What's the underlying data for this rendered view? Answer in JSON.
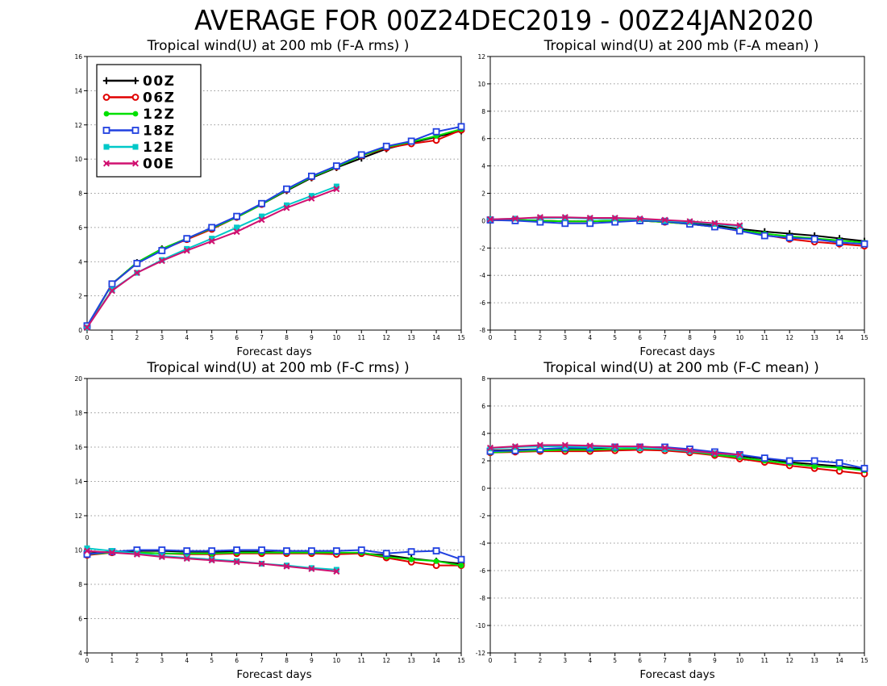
{
  "title": "AVERAGE FOR 00Z24DEC2019 - 00Z24JAN2020",
  "series_styles": [
    {
      "name": "00Z",
      "color": "#000000",
      "marker": "plus"
    },
    {
      "name": "06Z",
      "color": "#e00000",
      "marker": "circle"
    },
    {
      "name": "12Z",
      "color": "#00e000",
      "marker": "dot"
    },
    {
      "name": "18Z",
      "color": "#2040e0",
      "marker": "square"
    },
    {
      "name": "12E",
      "color": "#00c8c8",
      "marker": "filled-square"
    },
    {
      "name": "00E",
      "color": "#d01070",
      "marker": "x"
    }
  ],
  "chart_data": [
    {
      "type": "line",
      "title": "Tropical wind(U) at 200 mb (F-A rms) )",
      "xlabel": "Forecast days",
      "ylabel": "",
      "xlim": [
        0,
        15
      ],
      "ylim": [
        0,
        16
      ],
      "yticks": [
        0,
        2,
        4,
        6,
        8,
        10,
        12,
        14,
        16
      ],
      "xticks": [
        0,
        1,
        2,
        3,
        4,
        5,
        6,
        7,
        8,
        9,
        10,
        11,
        12,
        13,
        14,
        15
      ],
      "grid": "horizontal dotted",
      "legend": "top-left",
      "series": [
        {
          "name": "00Z",
          "x": [
            0,
            1,
            2,
            3,
            4,
            5,
            6,
            7,
            8,
            9,
            10,
            11,
            12,
            13,
            14,
            15
          ],
          "values": [
            0.2,
            2.7,
            3.95,
            4.75,
            5.35,
            5.95,
            6.6,
            7.35,
            8.15,
            8.9,
            9.5,
            10.05,
            10.6,
            10.95,
            11.3,
            11.65
          ]
        },
        {
          "name": "06Z",
          "x": [
            0,
            1,
            2,
            3,
            4,
            5,
            6,
            7,
            8,
            9,
            10,
            11,
            12,
            13,
            14,
            15
          ],
          "values": [
            0.2,
            2.7,
            3.9,
            4.7,
            5.3,
            5.9,
            6.6,
            7.35,
            8.2,
            8.95,
            9.55,
            10.2,
            10.65,
            10.9,
            11.1,
            11.7
          ]
        },
        {
          "name": "12Z",
          "x": [
            0,
            1,
            2,
            3,
            4,
            5,
            6,
            7,
            8,
            9,
            10,
            11,
            12,
            13,
            14,
            15
          ],
          "values": [
            0.2,
            2.7,
            3.95,
            4.75,
            5.35,
            5.95,
            6.6,
            7.35,
            8.2,
            8.95,
            9.55,
            10.2,
            10.7,
            11.0,
            11.35,
            11.75
          ]
        },
        {
          "name": "18Z",
          "x": [
            0,
            1,
            2,
            3,
            4,
            5,
            6,
            7,
            8,
            9,
            10,
            11,
            12,
            13,
            14,
            15
          ],
          "values": [
            0.25,
            2.7,
            3.9,
            4.65,
            5.35,
            6.0,
            6.65,
            7.4,
            8.25,
            9.0,
            9.6,
            10.25,
            10.75,
            11.05,
            11.6,
            11.9
          ]
        },
        {
          "name": "12E",
          "x": [
            0,
            1,
            2,
            3,
            4,
            5,
            6,
            7,
            8,
            9,
            10
          ],
          "values": [
            0.15,
            2.35,
            3.35,
            4.1,
            4.75,
            5.35,
            6.0,
            6.65,
            7.3,
            7.85,
            8.4
          ]
        },
        {
          "name": "00E",
          "x": [
            0,
            1,
            2,
            3,
            4,
            5,
            6,
            7,
            8,
            9,
            10
          ],
          "values": [
            0.15,
            2.3,
            3.35,
            4.05,
            4.65,
            5.2,
            5.75,
            6.45,
            7.15,
            7.7,
            8.25
          ]
        }
      ]
    },
    {
      "type": "line",
      "title": "Tropical wind(U) at 200 mb (F-A mean) )",
      "xlabel": "Forecast days",
      "ylabel": "",
      "xlim": [
        0,
        15
      ],
      "ylim": [
        -8,
        12
      ],
      "yticks": [
        -8,
        -6,
        -4,
        -2,
        0,
        2,
        4,
        6,
        8,
        10,
        12
      ],
      "xticks": [
        0,
        1,
        2,
        3,
        4,
        5,
        6,
        7,
        8,
        9,
        10,
        11,
        12,
        13,
        14,
        15
      ],
      "grid": "horizontal dotted",
      "series": [
        {
          "name": "00Z",
          "x": [
            0,
            1,
            2,
            3,
            4,
            5,
            6,
            7,
            8,
            9,
            10,
            11,
            12,
            13,
            14,
            15
          ],
          "values": [
            0.05,
            0.05,
            0.0,
            -0.05,
            -0.05,
            0.0,
            0.0,
            -0.1,
            -0.2,
            -0.35,
            -0.6,
            -0.8,
            -0.95,
            -1.1,
            -1.3,
            -1.5
          ]
        },
        {
          "name": "06Z",
          "x": [
            0,
            1,
            2,
            3,
            4,
            5,
            6,
            7,
            8,
            9,
            10,
            11,
            12,
            13,
            14,
            15
          ],
          "values": [
            0.05,
            0.05,
            0.0,
            -0.05,
            -0.05,
            0.0,
            0.0,
            -0.1,
            -0.25,
            -0.45,
            -0.75,
            -1.05,
            -1.35,
            -1.55,
            -1.7,
            -1.85
          ]
        },
        {
          "name": "12Z",
          "x": [
            0,
            1,
            2,
            3,
            4,
            5,
            6,
            7,
            8,
            9,
            10,
            11,
            12,
            13,
            14,
            15
          ],
          "values": [
            0.05,
            0.05,
            0.0,
            -0.05,
            -0.05,
            0.0,
            0.0,
            -0.1,
            -0.25,
            -0.45,
            -0.7,
            -0.95,
            -1.15,
            -1.3,
            -1.45,
            -1.6
          ]
        },
        {
          "name": "18Z",
          "x": [
            0,
            1,
            2,
            3,
            4,
            5,
            6,
            7,
            8,
            9,
            10,
            11,
            12,
            13,
            14,
            15
          ],
          "values": [
            0.05,
            0.0,
            -0.1,
            -0.2,
            -0.2,
            -0.1,
            0.0,
            -0.05,
            -0.25,
            -0.45,
            -0.75,
            -1.1,
            -1.25,
            -1.35,
            -1.6,
            -1.7
          ]
        },
        {
          "name": "12E",
          "x": [
            0,
            1,
            2,
            3,
            4,
            5,
            6,
            7,
            8,
            9,
            10
          ],
          "values": [
            0.1,
            0.15,
            0.2,
            0.2,
            0.15,
            0.15,
            0.1,
            0.0,
            -0.1,
            -0.25,
            -0.4
          ]
        },
        {
          "name": "00E",
          "x": [
            0,
            1,
            2,
            3,
            4,
            5,
            6,
            7,
            8,
            9,
            10
          ],
          "values": [
            0.1,
            0.15,
            0.25,
            0.25,
            0.2,
            0.2,
            0.15,
            0.05,
            -0.05,
            -0.2,
            -0.35
          ]
        }
      ]
    },
    {
      "type": "line",
      "title": "Tropical wind(U) at 200 mb (F-C rms) )",
      "xlabel": "Forecast days",
      "ylabel": "",
      "xlim": [
        0,
        15
      ],
      "ylim": [
        4,
        20
      ],
      "yticks": [
        4,
        6,
        8,
        10,
        12,
        14,
        16,
        18,
        20
      ],
      "xticks": [
        0,
        1,
        2,
        3,
        4,
        5,
        6,
        7,
        8,
        9,
        10,
        11,
        12,
        13,
        14,
        15
      ],
      "grid": "horizontal dotted",
      "series": [
        {
          "name": "00Z",
          "x": [
            0,
            1,
            2,
            3,
            4,
            5,
            6,
            7,
            8,
            9,
            10,
            11,
            12,
            13,
            14,
            15
          ],
          "values": [
            9.8,
            9.9,
            9.95,
            9.95,
            9.9,
            9.9,
            9.9,
            9.9,
            9.85,
            9.85,
            9.85,
            9.8,
            9.7,
            9.5,
            9.35,
            9.2
          ]
        },
        {
          "name": "06Z",
          "x": [
            0,
            1,
            2,
            3,
            4,
            5,
            6,
            7,
            8,
            9,
            10,
            11,
            12,
            13,
            14,
            15
          ],
          "values": [
            9.7,
            9.85,
            9.85,
            9.8,
            9.75,
            9.75,
            9.8,
            9.8,
            9.8,
            9.8,
            9.75,
            9.8,
            9.55,
            9.3,
            9.1,
            9.1
          ]
        },
        {
          "name": "12Z",
          "x": [
            0,
            1,
            2,
            3,
            4,
            5,
            6,
            7,
            8,
            9,
            10,
            11,
            12,
            13,
            14,
            15
          ],
          "values": [
            9.75,
            9.85,
            9.85,
            9.8,
            9.8,
            9.8,
            9.85,
            9.85,
            9.85,
            9.85,
            9.85,
            9.85,
            9.6,
            9.45,
            9.35,
            9.1
          ]
        },
        {
          "name": "18Z",
          "x": [
            0,
            1,
            2,
            3,
            4,
            5,
            6,
            7,
            8,
            9,
            10,
            11,
            12,
            13,
            14,
            15
          ],
          "values": [
            9.75,
            9.9,
            10.0,
            10.0,
            9.95,
            9.95,
            10.0,
            10.0,
            9.95,
            9.95,
            9.95,
            10.0,
            9.8,
            9.9,
            9.95,
            9.45
          ]
        },
        {
          "name": "12E",
          "x": [
            0,
            1,
            2,
            3,
            4,
            5,
            6,
            7,
            8,
            9,
            10
          ],
          "values": [
            10.1,
            9.95,
            9.8,
            9.65,
            9.55,
            9.45,
            9.35,
            9.2,
            9.1,
            8.95,
            8.85
          ]
        },
        {
          "name": "00E",
          "x": [
            0,
            1,
            2,
            3,
            4,
            5,
            6,
            7,
            8,
            9,
            10
          ],
          "values": [
            9.95,
            9.85,
            9.75,
            9.6,
            9.5,
            9.4,
            9.3,
            9.2,
            9.05,
            8.9,
            8.75
          ]
        }
      ]
    },
    {
      "type": "line",
      "title": "Tropical wind(U) at 200 mb (F-C mean) )",
      "xlabel": "Forecast days",
      "ylabel": "",
      "xlim": [
        0,
        15
      ],
      "ylim": [
        -12,
        8
      ],
      "yticks": [
        -12,
        -10,
        -8,
        -6,
        -4,
        -2,
        0,
        2,
        4,
        6,
        8
      ],
      "xticks": [
        0,
        1,
        2,
        3,
        4,
        5,
        6,
        7,
        8,
        9,
        10,
        11,
        12,
        13,
        14,
        15
      ],
      "grid": "horizontal dotted",
      "series": [
        {
          "name": "00Z",
          "x": [
            0,
            1,
            2,
            3,
            4,
            5,
            6,
            7,
            8,
            9,
            10,
            11,
            12,
            13,
            14,
            15
          ],
          "values": [
            2.75,
            2.8,
            2.85,
            2.85,
            2.85,
            2.85,
            2.85,
            2.8,
            2.7,
            2.55,
            2.35,
            2.15,
            1.9,
            1.75,
            1.6,
            1.4
          ]
        },
        {
          "name": "06Z",
          "x": [
            0,
            1,
            2,
            3,
            4,
            5,
            6,
            7,
            8,
            9,
            10,
            11,
            12,
            13,
            14,
            15
          ],
          "values": [
            2.6,
            2.65,
            2.7,
            2.7,
            2.7,
            2.75,
            2.8,
            2.75,
            2.6,
            2.4,
            2.15,
            1.9,
            1.65,
            1.45,
            1.25,
            1.05
          ]
        },
        {
          "name": "12Z",
          "x": [
            0,
            1,
            2,
            3,
            4,
            5,
            6,
            7,
            8,
            9,
            10,
            11,
            12,
            13,
            14,
            15
          ],
          "values": [
            2.6,
            2.7,
            2.75,
            2.8,
            2.8,
            2.85,
            2.9,
            2.85,
            2.7,
            2.45,
            2.25,
            2.0,
            1.8,
            1.6,
            1.5,
            1.3
          ]
        },
        {
          "name": "18Z",
          "x": [
            0,
            1,
            2,
            3,
            4,
            5,
            6,
            7,
            8,
            9,
            10,
            11,
            12,
            13,
            14,
            15
          ],
          "values": [
            2.7,
            2.75,
            2.85,
            2.95,
            2.95,
            3.0,
            3.0,
            3.0,
            2.85,
            2.65,
            2.45,
            2.2,
            2.0,
            2.0,
            1.85,
            1.45
          ]
        },
        {
          "name": "12E",
          "x": [
            0,
            1,
            2,
            3,
            4,
            5,
            6,
            7,
            8,
            9,
            10
          ],
          "values": [
            2.9,
            3.0,
            3.05,
            3.05,
            3.0,
            3.0,
            2.95,
            2.85,
            2.7,
            2.55,
            2.4
          ]
        },
        {
          "name": "00E",
          "x": [
            0,
            1,
            2,
            3,
            4,
            5,
            6,
            7,
            8,
            9,
            10
          ],
          "values": [
            2.95,
            3.05,
            3.15,
            3.15,
            3.1,
            3.05,
            3.05,
            2.95,
            2.75,
            2.55,
            2.45
          ]
        }
      ]
    }
  ]
}
